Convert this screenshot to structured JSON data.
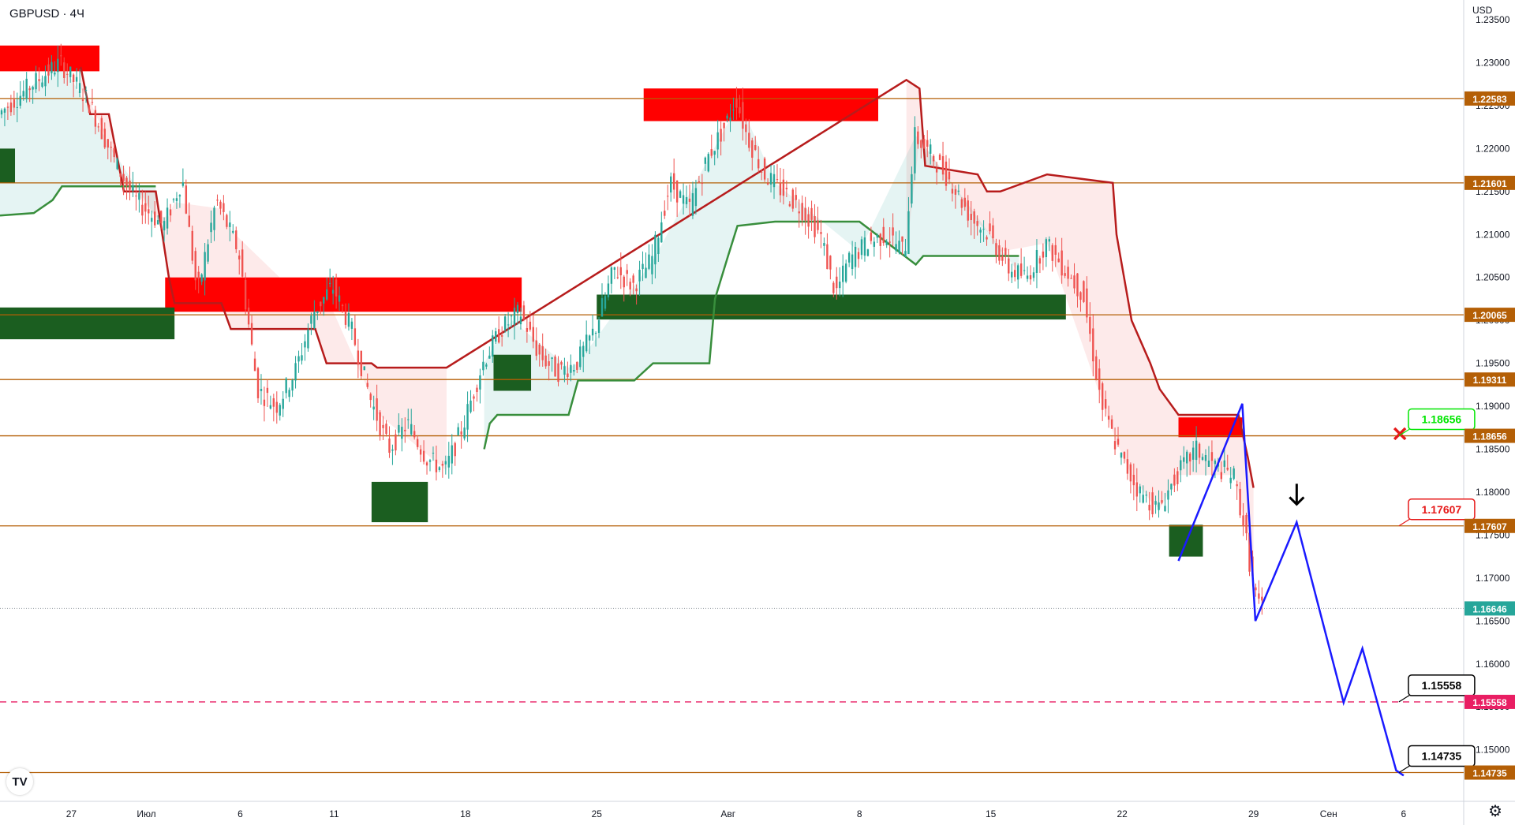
{
  "symbol": "GBPUSD · 4Ч",
  "currency": "USD",
  "logo_text": "TV",
  "chart_data": {
    "type": "candlestick",
    "symbol": "GBPUSD",
    "timeframe": "4Ч",
    "ylim": [
      1.144,
      1.2373
    ],
    "y_ticks": [
      "1.23500",
      "1.23000",
      "1.22500",
      "1.22000",
      "1.21500",
      "1.21000",
      "1.20500",
      "1.20000",
      "1.19500",
      "1.19000",
      "1.18500",
      "1.18000",
      "1.17500",
      "1.17000",
      "1.16500",
      "1.16000",
      "1.15500",
      "1.15000"
    ],
    "x_ticks": [
      {
        "day": 25,
        "label": "27"
      },
      {
        "day": 29,
        "label": "Июл"
      },
      {
        "day": 34,
        "label": "6"
      },
      {
        "day": 39,
        "label": "11"
      },
      {
        "day": 46,
        "label": "18"
      },
      {
        "day": 53,
        "label": "25"
      },
      {
        "day": 60,
        "label": "Авг"
      },
      {
        "day": 67,
        "label": "8"
      },
      {
        "day": 74,
        "label": "15"
      },
      {
        "day": 81,
        "label": "22"
      },
      {
        "day": 88,
        "label": "29"
      },
      {
        "day": 92,
        "label": "Сен"
      },
      {
        "day": 96,
        "label": "6"
      }
    ],
    "x_domain": [
      21.2,
      99.2
    ],
    "close_path": [
      [
        21.2,
        1.224
      ],
      [
        23.0,
        1.2275
      ],
      [
        24.5,
        1.23
      ],
      [
        26.0,
        1.2255
      ],
      [
        27.5,
        1.218
      ],
      [
        28.5,
        1.214
      ],
      [
        30.0,
        1.211
      ],
      [
        31.0,
        1.2165
      ],
      [
        31.8,
        1.203
      ],
      [
        32.8,
        1.214
      ],
      [
        34.0,
        1.208
      ],
      [
        35.0,
        1.192
      ],
      [
        36.0,
        1.19
      ],
      [
        37.0,
        1.194
      ],
      [
        38.0,
        1.201
      ],
      [
        39.0,
        1.204
      ],
      [
        40.0,
        1.199
      ],
      [
        41.0,
        1.191
      ],
      [
        42.0,
        1.185
      ],
      [
        43.0,
        1.188
      ],
      [
        44.0,
        1.184
      ],
      [
        45.0,
        1.1825
      ],
      [
        46.0,
        1.188
      ],
      [
        47.0,
        1.195
      ],
      [
        48.0,
        1.199
      ],
      [
        49.0,
        1.201
      ],
      [
        50.0,
        1.196
      ],
      [
        51.0,
        1.194
      ],
      [
        52.0,
        1.195
      ],
      [
        53.0,
        1.199
      ],
      [
        54.0,
        1.206
      ],
      [
        55.0,
        1.204
      ],
      [
        56.0,
        1.207
      ],
      [
        57.0,
        1.216
      ],
      [
        58.0,
        1.213
      ],
      [
        59.0,
        1.219
      ],
      [
        60.0,
        1.223
      ],
      [
        60.5,
        1.226
      ],
      [
        61.0,
        1.222
      ],
      [
        62.0,
        1.217
      ],
      [
        63.0,
        1.215
      ],
      [
        64.0,
        1.213
      ],
      [
        65.0,
        1.21
      ],
      [
        65.8,
        1.203
      ],
      [
        66.5,
        1.207
      ],
      [
        67.5,
        1.209
      ],
      [
        68.5,
        1.21
      ],
      [
        69.5,
        1.208
      ],
      [
        70.0,
        1.2215
      ],
      [
        71.0,
        1.219
      ],
      [
        72.0,
        1.216
      ],
      [
        73.0,
        1.212
      ],
      [
        74.0,
        1.21
      ],
      [
        75.0,
        1.206
      ],
      [
        76.0,
        1.205
      ],
      [
        77.0,
        1.209
      ],
      [
        78.0,
        1.206
      ],
      [
        79.0,
        1.203
      ],
      [
        80.0,
        1.19
      ],
      [
        81.0,
        1.184
      ],
      [
        82.0,
        1.18
      ],
      [
        83.0,
        1.178
      ],
      [
        84.0,
        1.182
      ],
      [
        85.0,
        1.185
      ],
      [
        86.0,
        1.183
      ],
      [
        87.0,
        1.182
      ],
      [
        87.5,
        1.177
      ],
      [
        88.0,
        1.17
      ],
      [
        88.4,
        1.1664
      ]
    ],
    "zones_supply": [
      [
        21.2,
        26.5,
        1.232,
        1.229
      ],
      [
        30.0,
        49.0,
        1.205,
        1.201
      ],
      [
        55.5,
        68.0,
        1.227,
        1.2232
      ],
      [
        84.0,
        87.4,
        1.1887,
        1.1864
      ]
    ],
    "zones_demand": [
      [
        21.2,
        22.0,
        1.22,
        1.216
      ],
      [
        21.2,
        30.5,
        1.2015,
        1.1978
      ],
      [
        41.0,
        44.0,
        1.1812,
        1.1765
      ],
      [
        47.5,
        49.5,
        1.196,
        1.1918
      ],
      [
        53.0,
        78.0,
        1.203,
        1.2001
      ],
      [
        83.5,
        85.3,
        1.1762,
        1.1725
      ]
    ],
    "trail_red": [
      [
        25.5,
        1.2295
      ],
      [
        26.0,
        1.224
      ],
      [
        27.0,
        1.224
      ],
      [
        27.8,
        1.215
      ],
      [
        29.5,
        1.215
      ],
      [
        30.2,
        1.205
      ],
      [
        30.5,
        1.202
      ],
      [
        33.0,
        1.202
      ],
      [
        33.5,
        1.199
      ],
      [
        38.0,
        1.199
      ],
      [
        38.6,
        1.195
      ],
      [
        41.0,
        1.195
      ],
      [
        41.3,
        1.1945
      ],
      [
        45.0,
        1.1945
      ],
      [
        69.5,
        1.228
      ],
      [
        70.2,
        1.227
      ],
      [
        70.5,
        1.218
      ],
      [
        73.3,
        1.217
      ],
      [
        73.8,
        1.215
      ],
      [
        74.5,
        1.215
      ],
      [
        77.0,
        1.217
      ],
      [
        80.5,
        1.216
      ],
      [
        80.7,
        1.21
      ],
      [
        81.5,
        1.2
      ],
      [
        82.5,
        1.195
      ],
      [
        83.0,
        1.192
      ],
      [
        84.0,
        1.189
      ],
      [
        87.0,
        1.189
      ],
      [
        87.2,
        1.189
      ],
      [
        87.7,
        1.184
      ],
      [
        88.0,
        1.1805
      ]
    ],
    "trail_green": [
      [
        21.2,
        1.2122
      ],
      [
        23.0,
        1.2125
      ],
      [
        24.0,
        1.214
      ],
      [
        24.5,
        1.2156
      ],
      [
        27.0,
        1.2156
      ],
      [
        29.5,
        1.2156
      ],
      [
        47.0,
        1.185
      ],
      [
        47.3,
        1.188
      ],
      [
        47.7,
        1.189
      ],
      [
        48.5,
        1.189
      ],
      [
        51.5,
        1.189
      ],
      [
        52.0,
        1.193
      ],
      [
        55.0,
        1.193
      ],
      [
        56.0,
        1.195
      ],
      [
        59.0,
        1.195
      ],
      [
        59.3,
        1.2025
      ],
      [
        60.0,
        1.2075
      ],
      [
        60.5,
        1.211
      ],
      [
        62.5,
        1.2115
      ],
      [
        67.0,
        1.2115
      ],
      [
        70.0,
        1.2065
      ],
      [
        70.4,
        1.2075
      ],
      [
        75.5,
        1.2075
      ]
    ],
    "levels": [
      {
        "label": "1.22583",
        "value": 1.22583
      },
      {
        "label": "1.21601",
        "value": 1.21601
      },
      {
        "label": "1.20065",
        "value": 1.20065
      },
      {
        "label": "1.19311",
        "value": 1.19311
      },
      {
        "label": "1.18656",
        "value": 1.18656
      },
      {
        "label": "1.17607",
        "value": 1.17607
      },
      {
        "label": "1.14735",
        "value": 1.14735
      }
    ],
    "dashed_level": {
      "label": "1.15558",
      "value": 1.15558
    },
    "current_price": {
      "label": "1.16646",
      "value": 1.16646
    },
    "projection": [
      [
        84.0,
        1.172
      ],
      [
        87.4,
        1.1903
      ],
      [
        88.1,
        1.165
      ],
      [
        90.3,
        1.1765
      ],
      [
        92.8,
        1.1555
      ],
      [
        93.8,
        1.1618
      ],
      [
        95.6,
        1.1476
      ],
      [
        96.0,
        1.147
      ]
    ],
    "callouts": [
      {
        "label": "1.18656",
        "color": "#00e600",
        "day": 96,
        "value": 1.18656,
        "tag": "tp"
      },
      {
        "label": "1.17607",
        "color": "#e61919",
        "day": 96,
        "value": 1.17607,
        "tag": "sl"
      },
      {
        "label": "1.15558",
        "color": "#000000",
        "day": 96,
        "value": 1.15558,
        "tag": "t1"
      },
      {
        "label": "1.14735",
        "color": "#000000",
        "day": 96,
        "value": 1.14735,
        "tag": "t2"
      }
    ],
    "markers": {
      "cross": {
        "day": 95.8,
        "value": 1.1868,
        "color": "#e61919"
      },
      "down_arrow": {
        "day": 90.3,
        "value": 1.1795,
        "color": "#000000"
      }
    },
    "colors": {
      "up": "#26a69a",
      "down": "#ef5350",
      "level": "#b45f06",
      "supply": "#ff0000",
      "demand": "#1b5e20",
      "trail_red": "#b71c1c",
      "trail_green": "#388e3c",
      "projection": "#1a1aff",
      "dashed": "#e91e63"
    }
  }
}
